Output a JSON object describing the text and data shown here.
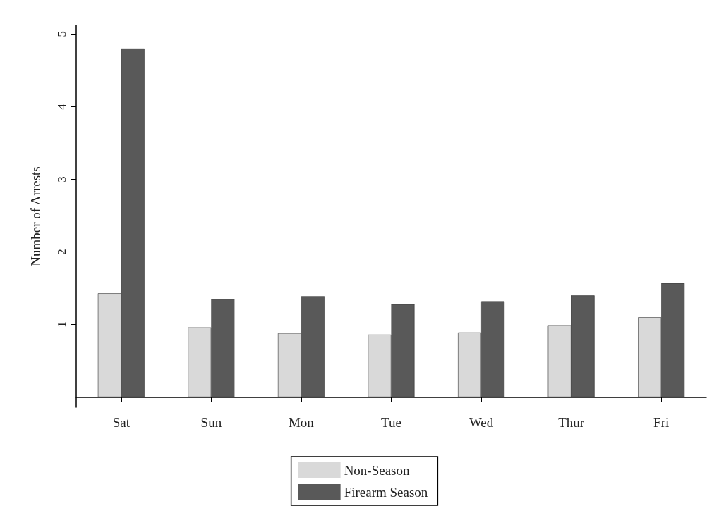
{
  "chart_data": {
    "type": "bar",
    "ylabel": "Number of Arrests",
    "categories": [
      "Sat",
      "Sun",
      "Mon",
      "Tue",
      "Wed",
      "Thur",
      "Fri"
    ],
    "series": [
      {
        "name": "Non-Season",
        "color": "#d9d9d9",
        "values": [
          1.43,
          0.96,
          0.88,
          0.86,
          0.89,
          0.99,
          1.1
        ]
      },
      {
        "name": "Firearm Season",
        "color": "#595959",
        "values": [
          4.8,
          1.35,
          1.39,
          1.28,
          1.32,
          1.4,
          1.57
        ]
      }
    ],
    "ylim": [
      -0.14,
      5.12
    ],
    "yticks": [
      1,
      2,
      3,
      4,
      5
    ],
    "grid": false,
    "legend": "bottom"
  }
}
